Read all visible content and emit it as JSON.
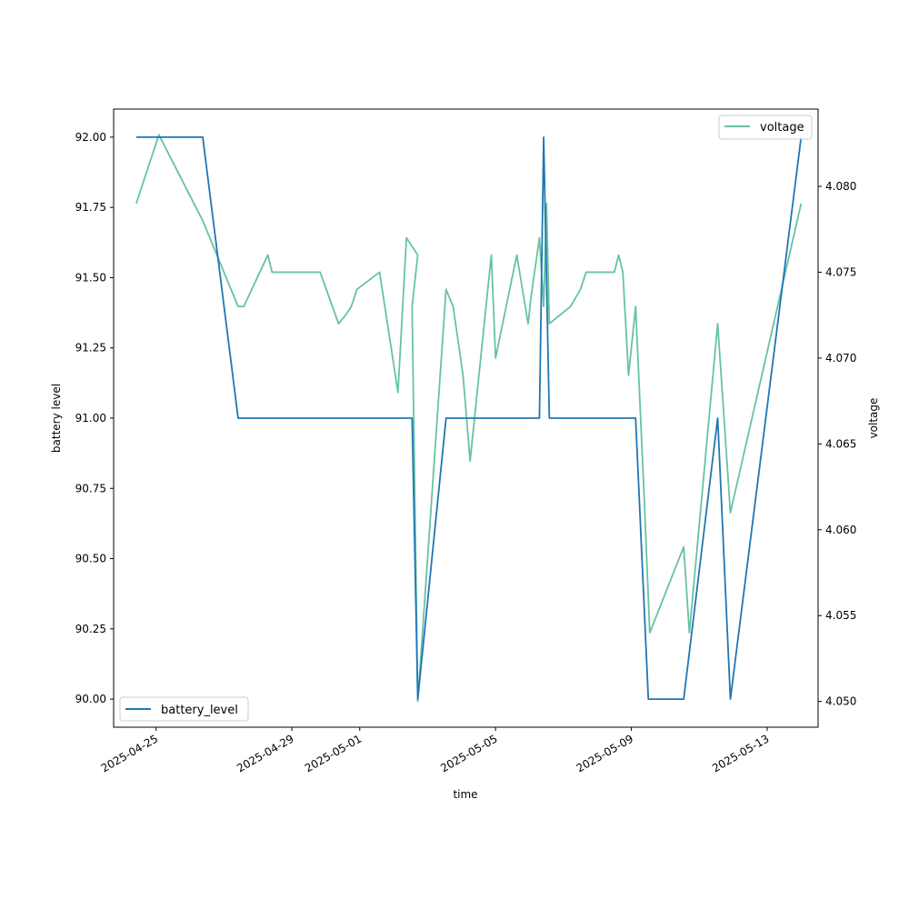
{
  "chart_data": {
    "type": "line",
    "xlabel": "time",
    "ylabel_left": "battery level",
    "ylabel_right": "voltage",
    "xlim": [
      "2025-04-23T18:00",
      "2025-05-14T12:00"
    ],
    "ylim_left": [
      89.9,
      92.1
    ],
    "ylim_right": [
      4.0485,
      4.0845
    ],
    "x_ticks": [
      "2025-04-25",
      "2025-04-29",
      "2025-05-01",
      "2025-05-05",
      "2025-05-09",
      "2025-05-13"
    ],
    "y_ticks_left": [
      "90.00",
      "90.25",
      "90.50",
      "90.75",
      "91.00",
      "91.25",
      "91.50",
      "91.75",
      "92.00"
    ],
    "y_ticks_right": [
      "4.050",
      "4.055",
      "4.060",
      "4.065",
      "4.070",
      "4.075",
      "4.080"
    ],
    "series": [
      {
        "name": "battery_level",
        "axis": "left",
        "color": "#1f77b4",
        "points": [
          [
            "2025-04-24T10:00",
            92
          ],
          [
            "2025-04-26T09:00",
            92
          ],
          [
            "2025-04-27T10:00",
            91
          ],
          [
            "2025-05-02T13:00",
            91
          ],
          [
            "2025-05-02T17:00",
            90
          ],
          [
            "2025-05-03T13:00",
            91
          ],
          [
            "2025-05-06T07:00",
            91
          ],
          [
            "2025-05-06T10:00",
            92
          ],
          [
            "2025-05-06T14:00",
            91
          ],
          [
            "2025-05-09T03:00",
            91
          ],
          [
            "2025-05-09T12:00",
            90
          ],
          [
            "2025-05-10T13:00",
            90
          ],
          [
            "2025-05-11T13:00",
            91
          ],
          [
            "2025-05-11T22:00",
            90
          ],
          [
            "2025-05-14T00:00",
            92
          ]
        ]
      },
      {
        "name": "voltage",
        "axis": "right",
        "color": "#66c2a5",
        "points": [
          [
            "2025-04-24T10:00",
            4.079
          ],
          [
            "2025-04-25T02:00",
            4.083
          ],
          [
            "2025-04-26T09:00",
            4.078
          ],
          [
            "2025-04-27T10:00",
            4.073
          ],
          [
            "2025-04-27T14:00",
            4.073
          ],
          [
            "2025-04-28T07:00",
            4.076
          ],
          [
            "2025-04-28T10:00",
            4.075
          ],
          [
            "2025-04-29T20:00",
            4.075
          ],
          [
            "2025-04-30T09:00",
            4.072
          ],
          [
            "2025-04-30T14:00",
            4.0725
          ],
          [
            "2025-04-30T18:00",
            4.073
          ],
          [
            "2025-04-30T22:00",
            4.074
          ],
          [
            "2025-05-01T14:00",
            4.075
          ],
          [
            "2025-05-02T03:00",
            4.068
          ],
          [
            "2025-05-02T09:00",
            4.077
          ],
          [
            "2025-05-02T17:00",
            4.076
          ],
          [
            "2025-05-02T13:00",
            4.073
          ],
          [
            "2025-05-02T17:00",
            4.05
          ],
          [
            "2025-05-03T13:00",
            4.074
          ],
          [
            "2025-05-03T18:00",
            4.073
          ],
          [
            "2025-05-04T01:00",
            4.069
          ],
          [
            "2025-05-04T06:00",
            4.064
          ],
          [
            "2025-05-04T21:00",
            4.076
          ],
          [
            "2025-05-05T00:00",
            4.07
          ],
          [
            "2025-05-05T15:00",
            4.076
          ],
          [
            "2025-05-05T23:00",
            4.072
          ],
          [
            "2025-05-06T01:00",
            4.0735
          ],
          [
            "2025-05-06T07:00",
            4.077
          ],
          [
            "2025-05-06T10:00",
            4.073
          ],
          [
            "2025-05-06T12:00",
            4.079
          ],
          [
            "2025-05-06T14:00",
            4.072
          ],
          [
            "2025-05-07T05:00",
            4.073
          ],
          [
            "2025-05-07T12:00",
            4.074
          ],
          [
            "2025-05-07T16:00",
            4.075
          ],
          [
            "2025-05-08T12:00",
            4.075
          ],
          [
            "2025-05-08T15:00",
            4.076
          ],
          [
            "2025-05-08T18:00",
            4.075
          ],
          [
            "2025-05-08T22:00",
            4.069
          ],
          [
            "2025-05-09T03:00",
            4.073
          ],
          [
            "2025-05-09T09:00",
            4.062
          ],
          [
            "2025-05-09T13:00",
            4.054
          ],
          [
            "2025-05-10T13:00",
            4.059
          ],
          [
            "2025-05-10T17:00",
            4.054
          ],
          [
            "2025-05-11T13:00",
            4.072
          ],
          [
            "2025-05-11T22:00",
            4.061
          ],
          [
            "2025-05-14T00:00",
            4.079
          ]
        ]
      }
    ],
    "legends": [
      {
        "label": "battery_level",
        "placement": "lower-left"
      },
      {
        "label": "voltage",
        "placement": "upper-right"
      }
    ]
  }
}
